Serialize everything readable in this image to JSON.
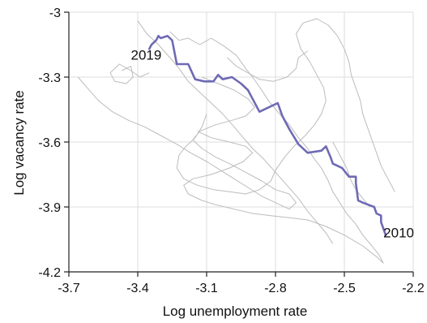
{
  "chart_data": {
    "type": "line",
    "xlabel": "Log unemployment rate",
    "ylabel": "Log vacancy rate",
    "xlim": [
      -3.7,
      -2.2
    ],
    "ylim": [
      -4.2,
      -3.0
    ],
    "x_ticks": [
      -3.7,
      -3.4,
      -3.1,
      -2.8,
      -2.5,
      -2.2
    ],
    "y_ticks": [
      -4.2,
      -3.9,
      -3.6,
      -3.3,
      -3.0
    ],
    "x_tick_labels": [
      "-3.7",
      "-3.4",
      "-3.1",
      "-2.8",
      "-2.5",
      "-2.2"
    ],
    "y_tick_labels": [
      "-4.2",
      "-3.9",
      "-3.6",
      "-3.3",
      "-3"
    ],
    "grid": true,
    "colors": {
      "highlight": "#6e6ab4",
      "background_series": "#bcbcbc",
      "grid": "#dddddd",
      "axis": "#222222"
    },
    "annotations": [
      {
        "text": "2019",
        "x": -3.43,
        "y": -3.22,
        "anchor": "start"
      },
      {
        "text": "2010",
        "x": -2.33,
        "y": -4.04,
        "anchor": "start"
      }
    ],
    "highlight_series": {
      "points": [
        [
          -2.32,
          -4.03
        ],
        [
          -2.33,
          -4.0
        ],
        [
          -2.34,
          -3.97
        ],
        [
          -2.34,
          -3.94
        ],
        [
          -2.36,
          -3.93
        ],
        [
          -2.37,
          -3.9
        ],
        [
          -2.42,
          -3.88
        ],
        [
          -2.44,
          -3.87
        ],
        [
          -2.45,
          -3.79
        ],
        [
          -2.45,
          -3.76
        ],
        [
          -2.48,
          -3.76
        ],
        [
          -2.51,
          -3.72
        ],
        [
          -2.53,
          -3.71
        ],
        [
          -2.55,
          -3.7
        ],
        [
          -2.56,
          -3.67
        ],
        [
          -2.58,
          -3.62
        ],
        [
          -2.6,
          -3.64
        ],
        [
          -2.66,
          -3.65
        ],
        [
          -2.7,
          -3.61
        ],
        [
          -2.74,
          -3.54
        ],
        [
          -2.77,
          -3.48
        ],
        [
          -2.79,
          -3.42
        ],
        [
          -2.83,
          -3.44
        ],
        [
          -2.87,
          -3.46
        ],
        [
          -2.9,
          -3.4
        ],
        [
          -2.92,
          -3.36
        ],
        [
          -2.95,
          -3.33
        ],
        [
          -2.99,
          -3.3
        ],
        [
          -3.03,
          -3.31
        ],
        [
          -3.05,
          -3.29
        ],
        [
          -3.07,
          -3.32
        ],
        [
          -3.11,
          -3.32
        ],
        [
          -3.15,
          -3.31
        ],
        [
          -3.18,
          -3.24
        ],
        [
          -3.23,
          -3.24
        ],
        [
          -3.25,
          -3.13
        ],
        [
          -3.27,
          -3.11
        ],
        [
          -3.3,
          -3.12
        ],
        [
          -3.31,
          -3.11
        ],
        [
          -3.32,
          -3.13
        ],
        [
          -3.34,
          -3.15
        ],
        [
          -3.35,
          -3.17
        ]
      ]
    },
    "background_series": [
      {
        "points": [
          [
            -3.26,
            -3.09
          ],
          [
            -3.22,
            -3.13
          ],
          [
            -3.18,
            -3.12
          ],
          [
            -3.13,
            -3.15
          ],
          [
            -3.08,
            -3.12
          ],
          [
            -3.02,
            -3.16
          ],
          [
            -2.97,
            -3.2
          ],
          [
            -2.93,
            -3.26
          ],
          [
            -2.9,
            -3.3
          ],
          [
            -2.86,
            -3.36
          ],
          [
            -2.83,
            -3.41
          ],
          [
            -2.79,
            -3.46
          ],
          [
            -2.74,
            -3.52
          ],
          [
            -2.7,
            -3.58
          ],
          [
            -2.66,
            -3.63
          ],
          [
            -2.63,
            -3.68
          ],
          [
            -2.6,
            -3.72
          ],
          [
            -2.57,
            -3.78
          ],
          [
            -2.55,
            -3.83
          ],
          [
            -2.52,
            -3.88
          ],
          [
            -2.49,
            -3.93
          ],
          [
            -2.45,
            -3.98
          ],
          [
            -2.42,
            -4.03
          ],
          [
            -2.38,
            -4.08
          ],
          [
            -2.35,
            -4.12
          ],
          [
            -2.33,
            -4.16
          ],
          [
            -2.36,
            -4.13
          ],
          [
            -2.42,
            -4.08
          ],
          [
            -2.5,
            -4.03
          ],
          [
            -2.58,
            -3.99
          ],
          [
            -2.66,
            -3.96
          ],
          [
            -2.74,
            -3.95
          ],
          [
            -2.82,
            -3.94
          ],
          [
            -2.9,
            -3.93
          ],
          [
            -2.98,
            -3.91
          ],
          [
            -3.06,
            -3.89
          ],
          [
            -3.12,
            -3.87
          ],
          [
            -3.18,
            -3.84
          ],
          [
            -3.2,
            -3.8
          ],
          [
            -3.16,
            -3.77
          ],
          [
            -3.08,
            -3.75
          ],
          [
            -3.0,
            -3.72
          ],
          [
            -2.94,
            -3.69
          ],
          [
            -2.9,
            -3.65
          ],
          [
            -2.93,
            -3.62
          ],
          [
            -3.0,
            -3.6
          ],
          [
            -3.08,
            -3.58
          ],
          [
            -3.14,
            -3.55
          ]
        ]
      },
      {
        "points": [
          [
            -3.66,
            -3.3
          ],
          [
            -3.62,
            -3.35
          ],
          [
            -3.57,
            -3.41
          ],
          [
            -3.51,
            -3.46
          ],
          [
            -3.44,
            -3.5
          ],
          [
            -3.37,
            -3.53
          ],
          [
            -3.3,
            -3.57
          ],
          [
            -3.23,
            -3.61
          ],
          [
            -3.17,
            -3.65
          ],
          [
            -3.1,
            -3.69
          ],
          [
            -3.04,
            -3.73
          ],
          [
            -2.98,
            -3.77
          ],
          [
            -2.92,
            -3.81
          ],
          [
            -2.86,
            -3.85
          ],
          [
            -2.8,
            -3.88
          ],
          [
            -2.74,
            -3.91
          ],
          [
            -2.71,
            -3.88
          ],
          [
            -2.74,
            -3.84
          ],
          [
            -2.8,
            -3.82
          ],
          [
            -2.86,
            -3.78
          ],
          [
            -2.93,
            -3.74
          ],
          [
            -3.0,
            -3.7
          ],
          [
            -3.06,
            -3.67
          ],
          [
            -3.12,
            -3.63
          ],
          [
            -3.16,
            -3.59
          ],
          [
            -3.13,
            -3.55
          ],
          [
            -3.06,
            -3.52
          ],
          [
            -2.99,
            -3.5
          ],
          [
            -2.93,
            -3.48
          ],
          [
            -2.89,
            -3.44
          ],
          [
            -2.92,
            -3.4
          ],
          [
            -2.98,
            -3.36
          ],
          [
            -3.05,
            -3.33
          ],
          [
            -3.12,
            -3.3
          ]
        ]
      },
      {
        "points": [
          [
            -3.1,
            -3.47
          ],
          [
            -3.12,
            -3.53
          ],
          [
            -3.15,
            -3.58
          ],
          [
            -3.19,
            -3.62
          ],
          [
            -3.22,
            -3.66
          ],
          [
            -3.23,
            -3.72
          ],
          [
            -3.2,
            -3.77
          ],
          [
            -3.14,
            -3.8
          ],
          [
            -3.07,
            -3.82
          ],
          [
            -3.0,
            -3.83
          ],
          [
            -2.93,
            -3.84
          ],
          [
            -2.87,
            -3.82
          ],
          [
            -2.82,
            -3.78
          ],
          [
            -2.8,
            -3.73
          ],
          [
            -2.76,
            -3.67
          ],
          [
            -2.72,
            -3.62
          ],
          [
            -2.67,
            -3.57
          ],
          [
            -2.63,
            -3.52
          ],
          [
            -2.6,
            -3.47
          ],
          [
            -2.58,
            -3.41
          ],
          [
            -2.59,
            -3.35
          ],
          [
            -2.62,
            -3.29
          ],
          [
            -2.65,
            -3.23
          ],
          [
            -2.69,
            -3.17
          ],
          [
            -2.71,
            -3.1
          ],
          [
            -2.68,
            -3.05
          ],
          [
            -2.62,
            -3.03
          ],
          [
            -2.57,
            -3.06
          ],
          [
            -2.53,
            -3.11
          ],
          [
            -2.5,
            -3.17
          ],
          [
            -2.48,
            -3.23
          ],
          [
            -2.47,
            -3.29
          ],
          [
            -2.45,
            -3.35
          ],
          [
            -2.43,
            -3.41
          ],
          [
            -2.42,
            -3.47
          ],
          [
            -2.4,
            -3.53
          ],
          [
            -2.38,
            -3.59
          ],
          [
            -2.36,
            -3.65
          ],
          [
            -2.34,
            -3.71
          ],
          [
            -2.31,
            -3.77
          ],
          [
            -2.28,
            -3.83
          ]
        ]
      },
      {
        "points": [
          [
            -3.4,
            -3.04
          ],
          [
            -3.36,
            -3.1
          ],
          [
            -3.31,
            -3.15
          ],
          [
            -3.26,
            -3.21
          ],
          [
            -3.22,
            -3.26
          ],
          [
            -3.18,
            -3.32
          ],
          [
            -3.13,
            -3.37
          ],
          [
            -3.08,
            -3.42
          ],
          [
            -3.03,
            -3.47
          ],
          [
            -2.98,
            -3.53
          ],
          [
            -2.94,
            -3.58
          ],
          [
            -2.9,
            -3.63
          ],
          [
            -2.85,
            -3.68
          ],
          [
            -2.8,
            -3.74
          ],
          [
            -2.75,
            -3.8
          ],
          [
            -2.7,
            -3.86
          ],
          [
            -2.66,
            -3.92
          ],
          [
            -2.62,
            -3.97
          ],
          [
            -2.58,
            -4.02
          ],
          [
            -2.55,
            -4.07
          ]
        ]
      },
      {
        "points": [
          [
            -3.47,
            -3.27
          ],
          [
            -3.43,
            -3.25
          ],
          [
            -3.42,
            -3.3
          ],
          [
            -3.45,
            -3.33
          ],
          [
            -3.5,
            -3.32
          ],
          [
            -3.52,
            -3.28
          ],
          [
            -3.48,
            -3.24
          ],
          [
            -3.43,
            -3.27
          ],
          [
            -3.39,
            -3.3
          ],
          [
            -3.35,
            -3.28
          ]
        ]
      },
      {
        "points": [
          [
            -3.01,
            -3.21
          ],
          [
            -2.97,
            -3.25
          ],
          [
            -2.92,
            -3.28
          ],
          [
            -2.87,
            -3.31
          ],
          [
            -2.81,
            -3.32
          ],
          [
            -2.75,
            -3.3
          ],
          [
            -2.71,
            -3.26
          ],
          [
            -2.7,
            -3.21
          ],
          [
            -2.66,
            -3.18
          ]
        ]
      },
      {
        "points": [
          [
            -2.55,
            -3.6
          ],
          [
            -2.52,
            -3.66
          ],
          [
            -2.49,
            -3.72
          ],
          [
            -2.47,
            -3.78
          ],
          [
            -2.45,
            -3.82
          ],
          [
            -2.42,
            -3.86
          ],
          [
            -2.39,
            -3.9
          ]
        ]
      }
    ]
  }
}
